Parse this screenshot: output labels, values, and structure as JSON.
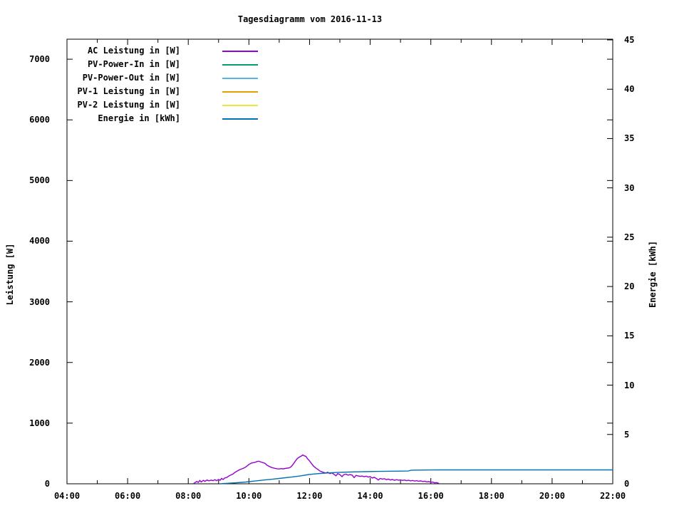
{
  "chart_data": {
    "type": "line",
    "title": "Tagesdiagramm vom 2016-11-13",
    "xlabel": "",
    "ylabel": "Leistung [W]",
    "y2label": "Energie [kWh]",
    "grid": false,
    "legend_position": "top-left-inside",
    "x_axis": {
      "unit": "time",
      "range_hours": [
        4,
        22
      ],
      "major_tick_hours": [
        4,
        6,
        8,
        10,
        12,
        14,
        16,
        18,
        20,
        22
      ],
      "major_tick_labels": [
        "04:00",
        "06:00",
        "08:00",
        "10:00",
        "12:00",
        "14:00",
        "16:00",
        "18:00",
        "20:00",
        "22:00"
      ],
      "minor_tick_hours": [
        5,
        7,
        9,
        11,
        13,
        15,
        17,
        19,
        21
      ]
    },
    "y_axis": {
      "label": "Leistung [W]",
      "range": [
        0,
        7330
      ],
      "tick_values": [
        0,
        1000,
        2000,
        3000,
        4000,
        5000,
        6000,
        7000
      ],
      "tick_labels": [
        "0",
        "1000",
        "2000",
        "3000",
        "4000",
        "5000",
        "6000",
        "7000"
      ]
    },
    "y2_axis": {
      "label": "Energie [kWh]",
      "range": [
        0,
        45
      ],
      "tick_values": [
        0,
        5,
        10,
        15,
        20,
        25,
        30,
        35,
        40,
        45
      ],
      "tick_labels": [
        "0",
        "5",
        "10",
        "15",
        "20",
        "25",
        "30",
        "35",
        "40",
        "45"
      ]
    },
    "legend": [
      {
        "label": "AC Leistung in [W]",
        "color": "#9400d3"
      },
      {
        "label": "PV-Power-In in [W]",
        "color": "#009e73"
      },
      {
        "label": "PV-Power-Out in [W]",
        "color": "#56b4e9"
      },
      {
        "label": "PV-1 Leistung in [W]",
        "color": "#e69f00"
      },
      {
        "label": "PV-2 Leistung in [W]",
        "color": "#f0e442"
      },
      {
        "label": "Energie in [kWh]",
        "color": "#0072b2"
      }
    ],
    "series": [
      {
        "name": "AC Leistung in [W]",
        "color": "#9400d3",
        "axis": "y",
        "points": [
          [
            8.17,
            3
          ],
          [
            8.22,
            18
          ],
          [
            8.28,
            40
          ],
          [
            8.33,
            22
          ],
          [
            8.38,
            55
          ],
          [
            8.43,
            30
          ],
          [
            8.5,
            58
          ],
          [
            8.55,
            40
          ],
          [
            8.62,
            62
          ],
          [
            8.68,
            48
          ],
          [
            8.75,
            60
          ],
          [
            8.82,
            52
          ],
          [
            8.88,
            68
          ],
          [
            8.93,
            50
          ],
          [
            9.0,
            72
          ],
          [
            9.05,
            58
          ],
          [
            9.1,
            88
          ],
          [
            9.15,
            70
          ],
          [
            9.2,
            95
          ],
          [
            9.27,
            105
          ],
          [
            9.33,
            125
          ],
          [
            9.4,
            145
          ],
          [
            9.47,
            160
          ],
          [
            9.53,
            185
          ],
          [
            9.6,
            205
          ],
          [
            9.67,
            225
          ],
          [
            9.73,
            240
          ],
          [
            9.8,
            252
          ],
          [
            9.87,
            268
          ],
          [
            9.93,
            290
          ],
          [
            10.0,
            318
          ],
          [
            10.07,
            338
          ],
          [
            10.13,
            348
          ],
          [
            10.2,
            352
          ],
          [
            10.27,
            368
          ],
          [
            10.33,
            372
          ],
          [
            10.4,
            358
          ],
          [
            10.47,
            348
          ],
          [
            10.53,
            338
          ],
          [
            10.6,
            305
          ],
          [
            10.67,
            288
          ],
          [
            10.73,
            272
          ],
          [
            10.8,
            262
          ],
          [
            10.87,
            252
          ],
          [
            10.93,
            248
          ],
          [
            11.0,
            244
          ],
          [
            11.07,
            250
          ],
          [
            11.13,
            246
          ],
          [
            11.2,
            254
          ],
          [
            11.27,
            258
          ],
          [
            11.33,
            262
          ],
          [
            11.4,
            285
          ],
          [
            11.47,
            330
          ],
          [
            11.53,
            372
          ],
          [
            11.6,
            418
          ],
          [
            11.67,
            442
          ],
          [
            11.73,
            458
          ],
          [
            11.78,
            476
          ],
          [
            11.83,
            460
          ],
          [
            11.88,
            452
          ],
          [
            11.93,
            415
          ],
          [
            12.0,
            378
          ],
          [
            12.07,
            330
          ],
          [
            12.13,
            292
          ],
          [
            12.2,
            262
          ],
          [
            12.27,
            238
          ],
          [
            12.33,
            215
          ],
          [
            12.4,
            198
          ],
          [
            12.47,
            188
          ],
          [
            12.53,
            178
          ],
          [
            12.6,
            190
          ],
          [
            12.67,
            168
          ],
          [
            12.73,
            180
          ],
          [
            12.8,
            158
          ],
          [
            12.87,
            132
          ],
          [
            12.93,
            168
          ],
          [
            13.0,
            152
          ],
          [
            13.07,
            118
          ],
          [
            13.13,
            150
          ],
          [
            13.2,
            158
          ],
          [
            13.27,
            142
          ],
          [
            13.33,
            152
          ],
          [
            13.4,
            145
          ],
          [
            13.47,
            102
          ],
          [
            13.53,
            138
          ],
          [
            13.6,
            130
          ],
          [
            13.67,
            122
          ],
          [
            13.73,
            128
          ],
          [
            13.8,
            118
          ],
          [
            13.87,
            124
          ],
          [
            13.93,
            112
          ],
          [
            14.0,
            118
          ],
          [
            14.07,
            95
          ],
          [
            14.13,
            108
          ],
          [
            14.2,
            88
          ],
          [
            14.27,
            62
          ],
          [
            14.33,
            88
          ],
          [
            14.4,
            78
          ],
          [
            14.47,
            85
          ],
          [
            14.53,
            68
          ],
          [
            14.6,
            78
          ],
          [
            14.67,
            62
          ],
          [
            14.73,
            72
          ],
          [
            14.8,
            58
          ],
          [
            14.87,
            68
          ],
          [
            14.93,
            60
          ],
          [
            15.0,
            64
          ],
          [
            15.07,
            55
          ],
          [
            15.13,
            62
          ],
          [
            15.2,
            52
          ],
          [
            15.27,
            58
          ],
          [
            15.33,
            48
          ],
          [
            15.4,
            55
          ],
          [
            15.47,
            45
          ],
          [
            15.53,
            52
          ],
          [
            15.6,
            42
          ],
          [
            15.67,
            48
          ],
          [
            15.73,
            38
          ],
          [
            15.8,
            42
          ],
          [
            15.87,
            32
          ],
          [
            15.93,
            36
          ],
          [
            16.0,
            26
          ],
          [
            16.07,
            28
          ],
          [
            16.13,
            16
          ],
          [
            16.2,
            20
          ],
          [
            16.27,
            6
          ]
        ]
      },
      {
        "name": "PV-Power-In in [W]",
        "color": "#009e73",
        "axis": "y",
        "points": []
      },
      {
        "name": "PV-Power-Out in [W]",
        "color": "#56b4e9",
        "axis": "y",
        "points": []
      },
      {
        "name": "PV-1 Leistung in [W]",
        "color": "#e69f00",
        "axis": "y",
        "points": []
      },
      {
        "name": "PV-2 Leistung in [W]",
        "color": "#f0e442",
        "axis": "y",
        "points": []
      },
      {
        "name": "Energie in [kWh]",
        "color": "#0072b2",
        "axis": "y2",
        "points": [
          [
            9.1,
            0.02
          ],
          [
            9.3,
            0.05
          ],
          [
            9.6,
            0.11
          ],
          [
            9.9,
            0.18
          ],
          [
            10.2,
            0.28
          ],
          [
            10.5,
            0.38
          ],
          [
            10.8,
            0.48
          ],
          [
            11.1,
            0.58
          ],
          [
            11.4,
            0.68
          ],
          [
            11.7,
            0.8
          ],
          [
            11.9,
            0.9
          ],
          [
            12.1,
            0.98
          ],
          [
            12.35,
            1.05
          ],
          [
            12.6,
            1.1
          ],
          [
            12.9,
            1.15
          ],
          [
            13.3,
            1.19
          ],
          [
            13.8,
            1.23
          ],
          [
            14.3,
            1.26
          ],
          [
            14.8,
            1.28
          ],
          [
            15.25,
            1.29
          ],
          [
            15.35,
            1.38
          ],
          [
            16.0,
            1.4
          ],
          [
            16.35,
            1.41
          ],
          [
            22.0,
            1.41
          ]
        ]
      }
    ]
  }
}
